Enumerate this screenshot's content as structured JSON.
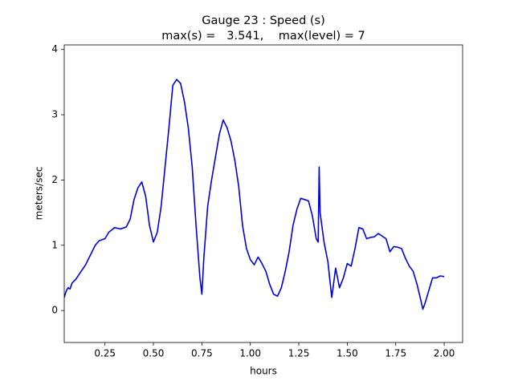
{
  "chart_data": {
    "type": "line",
    "title": "Gauge 23 : Speed (s)",
    "subtitle": "max(s) =   3.541,    max(level) = 7",
    "x_label": "hours",
    "y_label": "meters/sec",
    "xlim": [
      0.04,
      2.095
    ],
    "ylim": [
      -0.49,
      4.07
    ],
    "xticks": [
      0.25,
      {
        "value": 0.5,
        "label": "0.50"
      },
      0.75,
      {
        "value": 1.0,
        "label": "1.00"
      },
      1.25,
      {
        "value": 1.5,
        "label": "1.50"
      },
      1.75,
      {
        "value": 2.0,
        "label": "2.00"
      }
    ],
    "yticks": [
      0,
      1,
      2,
      3,
      4
    ],
    "grid": false,
    "series": [
      {
        "name": "speed",
        "color": "#0000dd",
        "x": [
          0.04,
          0.05,
          0.06,
          0.07,
          0.08,
          0.1,
          0.12,
          0.15,
          0.18,
          0.2,
          0.22,
          0.25,
          0.27,
          0.3,
          0.33,
          0.36,
          0.38,
          0.4,
          0.42,
          0.44,
          0.46,
          0.48,
          0.5,
          0.52,
          0.54,
          0.56,
          0.58,
          0.6,
          0.62,
          0.64,
          0.66,
          0.68,
          0.7,
          0.72,
          0.74,
          0.75,
          0.76,
          0.78,
          0.8,
          0.82,
          0.84,
          0.86,
          0.88,
          0.9,
          0.92,
          0.94,
          0.96,
          0.98,
          1.0,
          1.02,
          1.04,
          1.06,
          1.08,
          1.1,
          1.12,
          1.14,
          1.16,
          1.18,
          1.2,
          1.22,
          1.24,
          1.26,
          1.28,
          1.3,
          1.32,
          1.34,
          1.35,
          1.355,
          1.36,
          1.38,
          1.4,
          1.42,
          1.44,
          1.46,
          1.48,
          1.5,
          1.52,
          1.54,
          1.56,
          1.58,
          1.6,
          1.62,
          1.64,
          1.66,
          1.68,
          1.7,
          1.72,
          1.74,
          1.76,
          1.78,
          1.8,
          1.82,
          1.84,
          1.86,
          1.88,
          1.89,
          1.9,
          1.92,
          1.94,
          1.96,
          1.98,
          2.0
        ],
        "values": [
          0.2,
          0.3,
          0.35,
          0.33,
          0.42,
          0.48,
          0.57,
          0.7,
          0.88,
          1.0,
          1.07,
          1.1,
          1.2,
          1.27,
          1.25,
          1.28,
          1.4,
          1.7,
          1.88,
          1.97,
          1.75,
          1.3,
          1.05,
          1.2,
          1.6,
          2.2,
          2.8,
          3.45,
          3.54,
          3.48,
          3.2,
          2.8,
          2.2,
          1.3,
          0.5,
          0.25,
          0.8,
          1.6,
          2.0,
          2.35,
          2.7,
          2.92,
          2.8,
          2.6,
          2.3,
          1.9,
          1.3,
          0.95,
          0.78,
          0.7,
          0.82,
          0.72,
          0.6,
          0.4,
          0.25,
          0.22,
          0.35,
          0.6,
          0.9,
          1.3,
          1.55,
          1.72,
          1.7,
          1.68,
          1.45,
          1.1,
          1.05,
          2.2,
          1.5,
          1.05,
          0.75,
          0.2,
          0.65,
          0.35,
          0.5,
          0.72,
          0.68,
          0.95,
          1.27,
          1.25,
          1.1,
          1.12,
          1.13,
          1.18,
          1.14,
          1.1,
          0.9,
          0.98,
          0.97,
          0.95,
          0.8,
          0.68,
          0.6,
          0.4,
          0.15,
          0.02,
          0.1,
          0.3,
          0.5,
          0.5,
          0.53,
          0.52
        ]
      }
    ]
  }
}
